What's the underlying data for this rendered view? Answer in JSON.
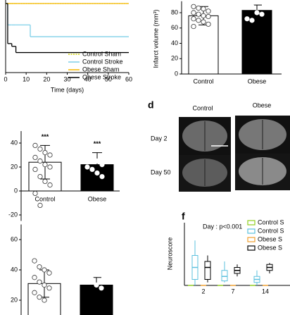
{
  "panels": {
    "d": {
      "label": "d",
      "columns": [
        "Control",
        "Obese"
      ],
      "rows": [
        "Day 2",
        "Day 50"
      ]
    },
    "f": {
      "label": "f"
    }
  },
  "chart_data": [
    {
      "type": "line",
      "step": true,
      "x_label": "Time (days)",
      "x": [
        0,
        1,
        3,
        5,
        12,
        60
      ],
      "xlim": [
        0,
        60
      ],
      "xticks": [
        0,
        10,
        20,
        30,
        40,
        50,
        60
      ],
      "ylim": [
        0,
        100
      ],
      "series": [
        {
          "name": "Control Sham",
          "color": "#d4d400",
          "style": "dotted",
          "values": [
            100,
            100,
            100,
            100,
            100,
            100
          ]
        },
        {
          "name": "Control Stroke",
          "color": "#7ecfe8",
          "style": "solid",
          "values": [
            100,
            69,
            69,
            69,
            52,
            52
          ]
        },
        {
          "name": "Obese Sham",
          "color": "#f5b800",
          "style": "solid",
          "values": [
            100,
            100,
            100,
            100,
            100,
            100
          ]
        },
        {
          "name": "Obese Stroke",
          "color": "#000000",
          "style": "solid",
          "values": [
            100,
            42,
            38,
            29,
            29,
            29
          ]
        }
      ]
    },
    {
      "type": "bar",
      "y_label": "Infarct volume (mm³)",
      "categories": [
        "Control",
        "Obese"
      ],
      "values": [
        76,
        83
      ],
      "errors": [
        12,
        7
      ],
      "colors": [
        "#ffffff",
        "#000000"
      ],
      "points": [
        [
          88,
          86,
          85,
          82,
          80,
          78,
          76,
          75,
          72,
          70,
          68,
          65,
          62
        ],
        [
          90,
          88,
          80,
          78,
          72,
          70
        ]
      ],
      "ylim": [
        0,
        95
      ],
      "yticks": [
        0,
        20,
        40,
        60,
        80
      ]
    },
    {
      "type": "bar",
      "categories": [
        "Control",
        "Obese"
      ],
      "annotations": [
        "***",
        "***"
      ],
      "values": [
        24,
        22
      ],
      "errors": [
        14,
        10
      ],
      "colors": [
        "#ffffff",
        "#000000"
      ],
      "points": [
        [
          38,
          35,
          32,
          30,
          28,
          25,
          22,
          20,
          18,
          12,
          8,
          5,
          -2,
          -12
        ],
        [
          30,
          28,
          25,
          22,
          20,
          18,
          15,
          12
        ]
      ],
      "ylim": [
        -25,
        50
      ],
      "yticks": [
        -20,
        0,
        20,
        40
      ]
    },
    {
      "type": "bar",
      "values": [
        31,
        30
      ],
      "errors": [
        9,
        5
      ],
      "colors": [
        "#ffffff",
        "#000000"
      ],
      "points": [
        [
          46,
          42,
          40,
          38,
          35,
          32,
          30,
          28,
          25,
          22,
          20
        ],
        [
          36,
          34,
          30,
          28
        ]
      ],
      "ylim": [
        0,
        70
      ],
      "yticks": [
        20,
        40,
        60
      ]
    },
    {
      "type": "box",
      "y_label": "Neuroscore",
      "annotation": "Day : p<0.001",
      "categories": [
        "2",
        "7",
        "14"
      ],
      "ylim": [
        0,
        20
      ],
      "series": [
        {
          "name": "Control S",
          "color": "#8fce1f",
          "boxes": [
            [
              0,
              0,
              0,
              0,
              0
            ],
            [
              0,
              0,
              0,
              0,
              0
            ],
            [
              0,
              0,
              0,
              0,
              0
            ]
          ]
        },
        {
          "name": "Control S",
          "color": "#5bc0de",
          "boxes": [
            [
              0,
              2,
              6,
              10,
              15
            ],
            [
              1,
              1.5,
              3,
              5,
              8
            ],
            [
              0,
              1,
              2,
              3,
              5
            ]
          ]
        },
        {
          "name": "Obese S",
          "color": "#f0a030",
          "boxes": [
            [
              0,
              0,
              0,
              0,
              0
            ],
            [
              0,
              0,
              0,
              0,
              0
            ],
            [
              0,
              0,
              0,
              0,
              0
            ]
          ]
        },
        {
          "name": "Obese S",
          "color": "#000000",
          "boxes": [
            [
              1,
              2,
              6,
              8,
              10
            ],
            [
              3,
              4,
              5,
              6,
              7
            ],
            [
              4,
              5,
              6,
              7,
              7.5
            ]
          ]
        }
      ]
    }
  ]
}
